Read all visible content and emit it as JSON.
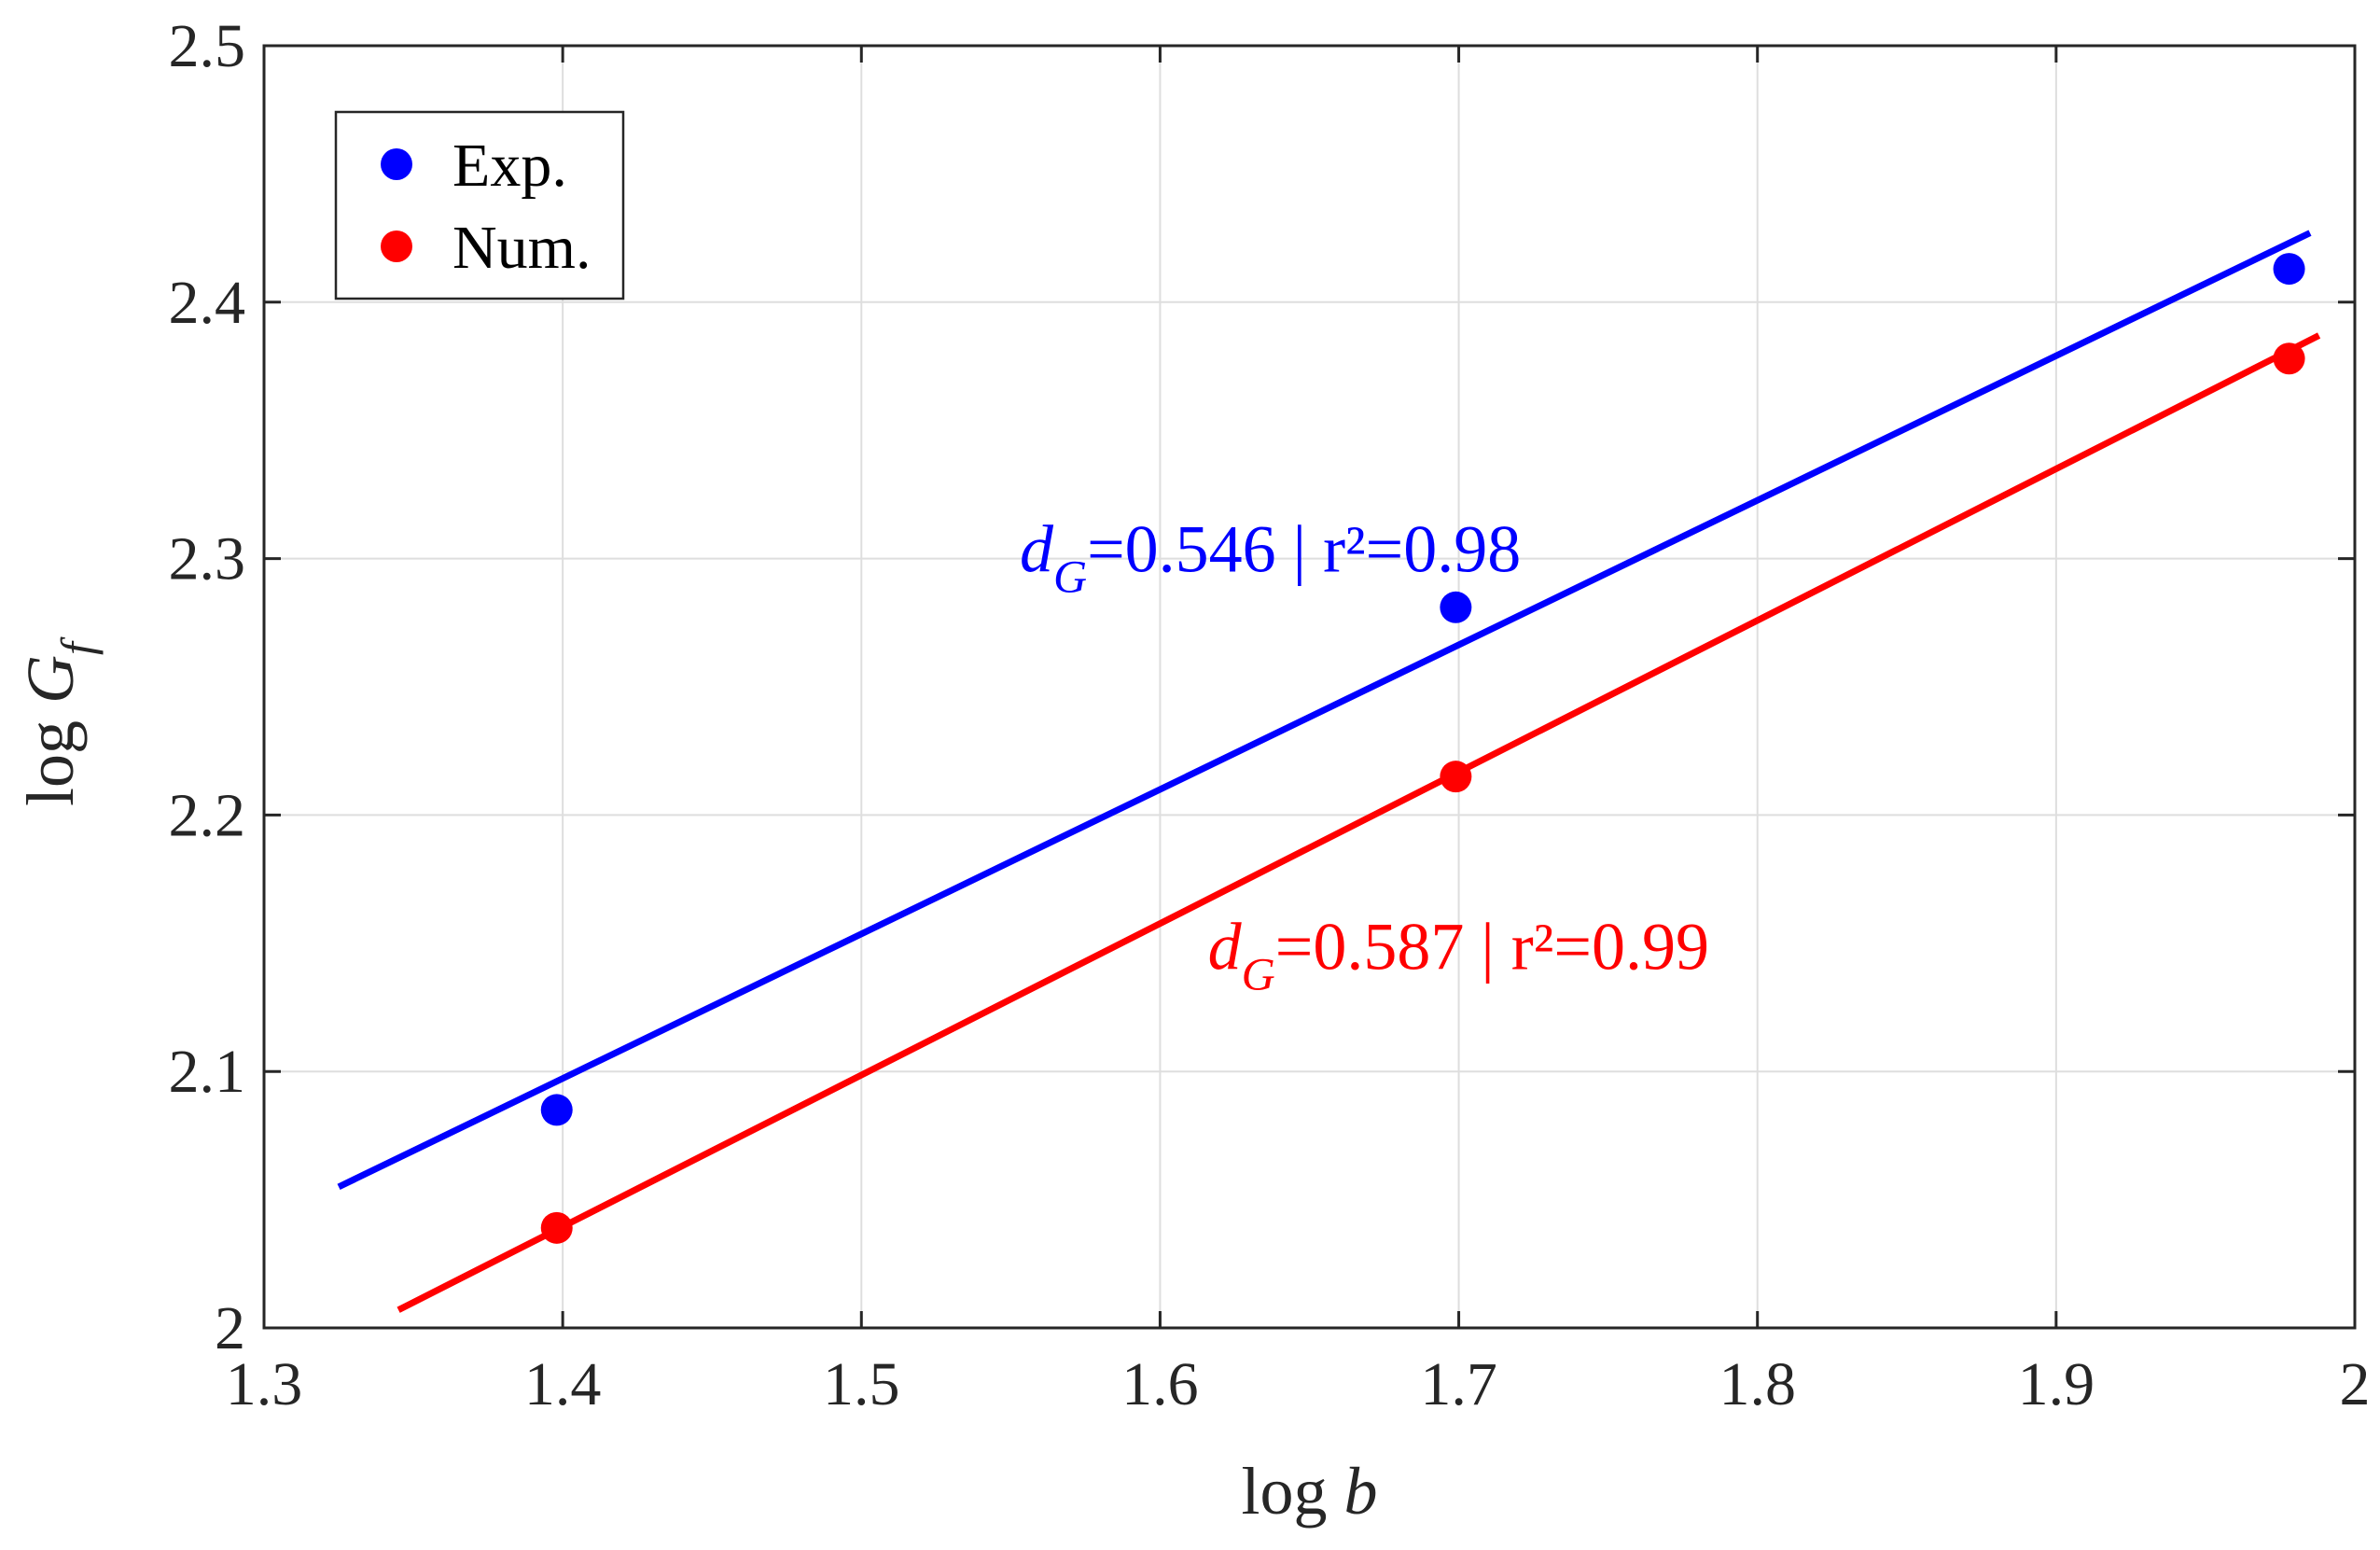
{
  "chart_data": {
    "type": "scatter",
    "title": "",
    "xlabel_prefix": "log ",
    "xlabel_var": "b",
    "ylabel_prefix": "log ",
    "ylabel_var": "G",
    "ylabel_sub": "f",
    "xlim": [
      1.3,
      2.0
    ],
    "ylim": [
      2.0,
      2.5
    ],
    "xticks": [
      1.3,
      1.4,
      1.5,
      1.6,
      1.7,
      1.8,
      1.9,
      2.0
    ],
    "yticks": [
      2.0,
      2.1,
      2.2,
      2.3,
      2.4,
      2.5
    ],
    "xtick_labels": [
      "1.3",
      "1.4",
      "1.5",
      "1.6",
      "1.7",
      "1.8",
      "1.9",
      "2"
    ],
    "ytick_labels": [
      "2",
      "2.1",
      "2.2",
      "2.3",
      "2.4",
      "2.5"
    ],
    "grid": true,
    "legend_position": "top-left",
    "series": [
      {
        "name": "Exp.",
        "color": "#0000ff",
        "points": [
          {
            "x": 1.398,
            "y": 2.085
          },
          {
            "x": 1.699,
            "y": 2.281
          },
          {
            "x": 1.978,
            "y": 2.413
          }
        ],
        "fit_line": {
          "x": [
            1.325,
            1.985
          ],
          "y": [
            2.055,
            2.427
          ]
        },
        "annotation": {
          "prefix": "d",
          "sub": "G",
          "text": "=0.546 | r²=0.98",
          "at": [
            1.553,
            2.295
          ]
        }
      },
      {
        "name": "Num.",
        "color": "#ff0000",
        "points": [
          {
            "x": 1.398,
            "y": 2.039
          },
          {
            "x": 1.699,
            "y": 2.215
          },
          {
            "x": 1.978,
            "y": 2.378
          }
        ],
        "fit_line": {
          "x": [
            1.345,
            1.988
          ],
          "y": [
            2.007,
            2.387
          ]
        },
        "annotation": {
          "prefix": "d",
          "sub": "G",
          "text": "=0.587 | r²=0.99",
          "at": [
            1.616,
            2.14
          ]
        }
      }
    ]
  }
}
